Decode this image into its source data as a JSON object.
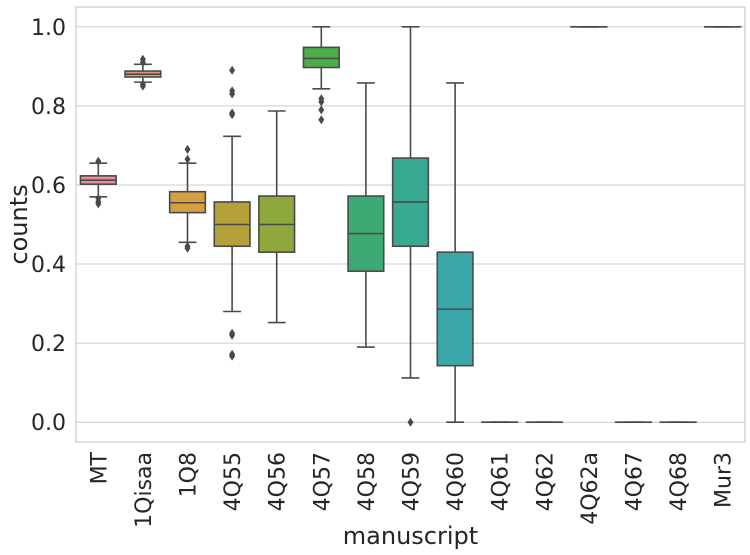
{
  "chart_data": {
    "type": "box",
    "xlabel": "manuscript",
    "ylabel": "counts",
    "ylim": [
      -0.05,
      1.05
    ],
    "yticks": [
      "0.0",
      "0.2",
      "0.4",
      "0.6",
      "0.8",
      "1.0"
    ],
    "grid": "horizontal",
    "categories": [
      "MT",
      "1Qisaa",
      "1Q8",
      "4Q55",
      "4Q56",
      "4Q57",
      "4Q58",
      "4Q59",
      "4Q60",
      "4Q61",
      "4Q62",
      "4Q62a",
      "4Q67",
      "4Q68",
      "Mur3"
    ],
    "boxes": [
      {
        "whislo": 0.57,
        "q1": 0.602,
        "med": 0.612,
        "q3": 0.623,
        "whishi": 0.655,
        "fliers": [
          0.552,
          0.558,
          0.566,
          0.66
        ],
        "color": "#e88b9b"
      },
      {
        "whislo": 0.86,
        "q1": 0.873,
        "med": 0.88,
        "q3": 0.888,
        "whishi": 0.905,
        "fliers": [
          0.85,
          0.855,
          0.91,
          0.918
        ],
        "color": "#e09a72"
      },
      {
        "whislo": 0.455,
        "q1": 0.53,
        "med": 0.555,
        "q3": 0.583,
        "whishi": 0.655,
        "fliers": [
          0.44,
          0.445,
          0.665,
          0.69
        ],
        "color": "#d6a040"
      },
      {
        "whislo": 0.28,
        "q1": 0.445,
        "med": 0.5,
        "q3": 0.557,
        "whishi": 0.723,
        "fliers": [
          0.167,
          0.172,
          0.22,
          0.225,
          0.778,
          0.782,
          0.83,
          0.838,
          0.89
        ],
        "color": "#b5a13a"
      },
      {
        "whislo": 0.252,
        "q1": 0.43,
        "med": 0.5,
        "q3": 0.572,
        "whishi": 0.787,
        "fliers": [],
        "color": "#8ea83e"
      },
      {
        "whislo": 0.843,
        "q1": 0.897,
        "med": 0.92,
        "q3": 0.948,
        "whishi": 1.0,
        "fliers": [
          0.765,
          0.79,
          0.81,
          0.818
        ],
        "color": "#4cad4a"
      },
      {
        "whislo": 0.19,
        "q1": 0.382,
        "med": 0.477,
        "q3": 0.572,
        "whishi": 0.858,
        "fliers": [],
        "color": "#3daa73"
      },
      {
        "whislo": 0.112,
        "q1": 0.445,
        "med": 0.557,
        "q3": 0.668,
        "whishi": 1.0,
        "fliers": [
          0.0
        ],
        "color": "#39a994"
      },
      {
        "whislo": 0.0,
        "q1": 0.143,
        "med": 0.286,
        "q3": 0.43,
        "whishi": 0.858,
        "fliers": [],
        "color": "#3aa8aa"
      },
      {
        "whislo": 0.0,
        "q1": 0.0,
        "med": 0.0,
        "q3": 0.0,
        "whishi": 0.0,
        "fliers": [],
        "color": "#3fa6bd"
      },
      {
        "whislo": 0.0,
        "q1": 0.0,
        "med": 0.0,
        "q3": 0.0,
        "whishi": 0.0,
        "fliers": [],
        "color": "#47a4d2"
      },
      {
        "whislo": 1.0,
        "q1": 1.0,
        "med": 1.0,
        "q3": 1.0,
        "whishi": 1.0,
        "fliers": [],
        "color": "#7a9ee0"
      },
      {
        "whislo": 0.0,
        "q1": 0.0,
        "med": 0.0,
        "q3": 0.0,
        "whishi": 0.0,
        "fliers": [],
        "color": "#a995e0"
      },
      {
        "whislo": 0.0,
        "q1": 0.0,
        "med": 0.0,
        "q3": 0.0,
        "whishi": 0.0,
        "fliers": [],
        "color": "#d38ad6"
      },
      {
        "whislo": 1.0,
        "q1": 1.0,
        "med": 1.0,
        "q3": 1.0,
        "whishi": 1.0,
        "fliers": [],
        "color": "#e48ab7"
      }
    ]
  }
}
